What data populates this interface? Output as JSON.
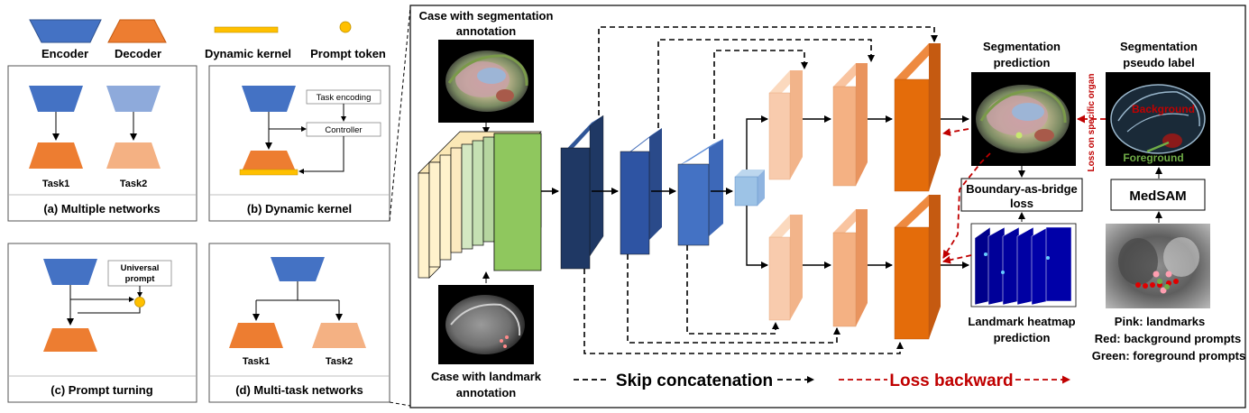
{
  "legend": {
    "encoder": "Encoder",
    "decoder": "Decoder",
    "dynamic_kernel": "Dynamic kernel",
    "prompt_token": "Prompt token"
  },
  "panels": {
    "a": {
      "caption": "(a) Multiple networks",
      "task1": "Task1",
      "task2": "Task2"
    },
    "b": {
      "caption": "(b) Dynamic kernel",
      "task_encoding": "Task encoding",
      "controller": "Controller"
    },
    "c": {
      "caption": "(c) Prompt turning",
      "prompt_line1": "Universal",
      "prompt_line2": "prompt"
    },
    "d": {
      "caption": "(d) Multi-task networks",
      "task1": "Task1",
      "task2": "Task2"
    }
  },
  "main": {
    "seg_case_line1": "Case with segmentation",
    "seg_case_line2": "annotation",
    "lm_case_line1": "Case with landmark",
    "lm_case_line2": "annotation",
    "seg_pred_line1": "Segmentation",
    "seg_pred_line2": "prediction",
    "pseudo_line1": "Segmentation",
    "pseudo_line2": "pseudo label",
    "loss_specific": "Loss on specific organ",
    "background": "Background",
    "foreground": "Foreground",
    "bab_line1": "Boundary-as-bridge",
    "bab_line2": "loss",
    "medsam": "MedSAM",
    "heatmap_line1": "Landmark heatmap",
    "heatmap_line2": "prediction",
    "pink": "Pink: landmarks",
    "red": "Red: background prompts",
    "green": "Green: foreground prompts",
    "skip": "Skip concatenation",
    "loss_backward": "Loss backward"
  },
  "colors": {
    "encoder": "#4472c4",
    "decoder": "#ed7d31",
    "decoder_light": "#f4b183",
    "dark_navy": "#1f3864",
    "loss_red": "#c00000",
    "foreground_green": "#70ad47",
    "kernel_yellow": "#ffc000"
  }
}
